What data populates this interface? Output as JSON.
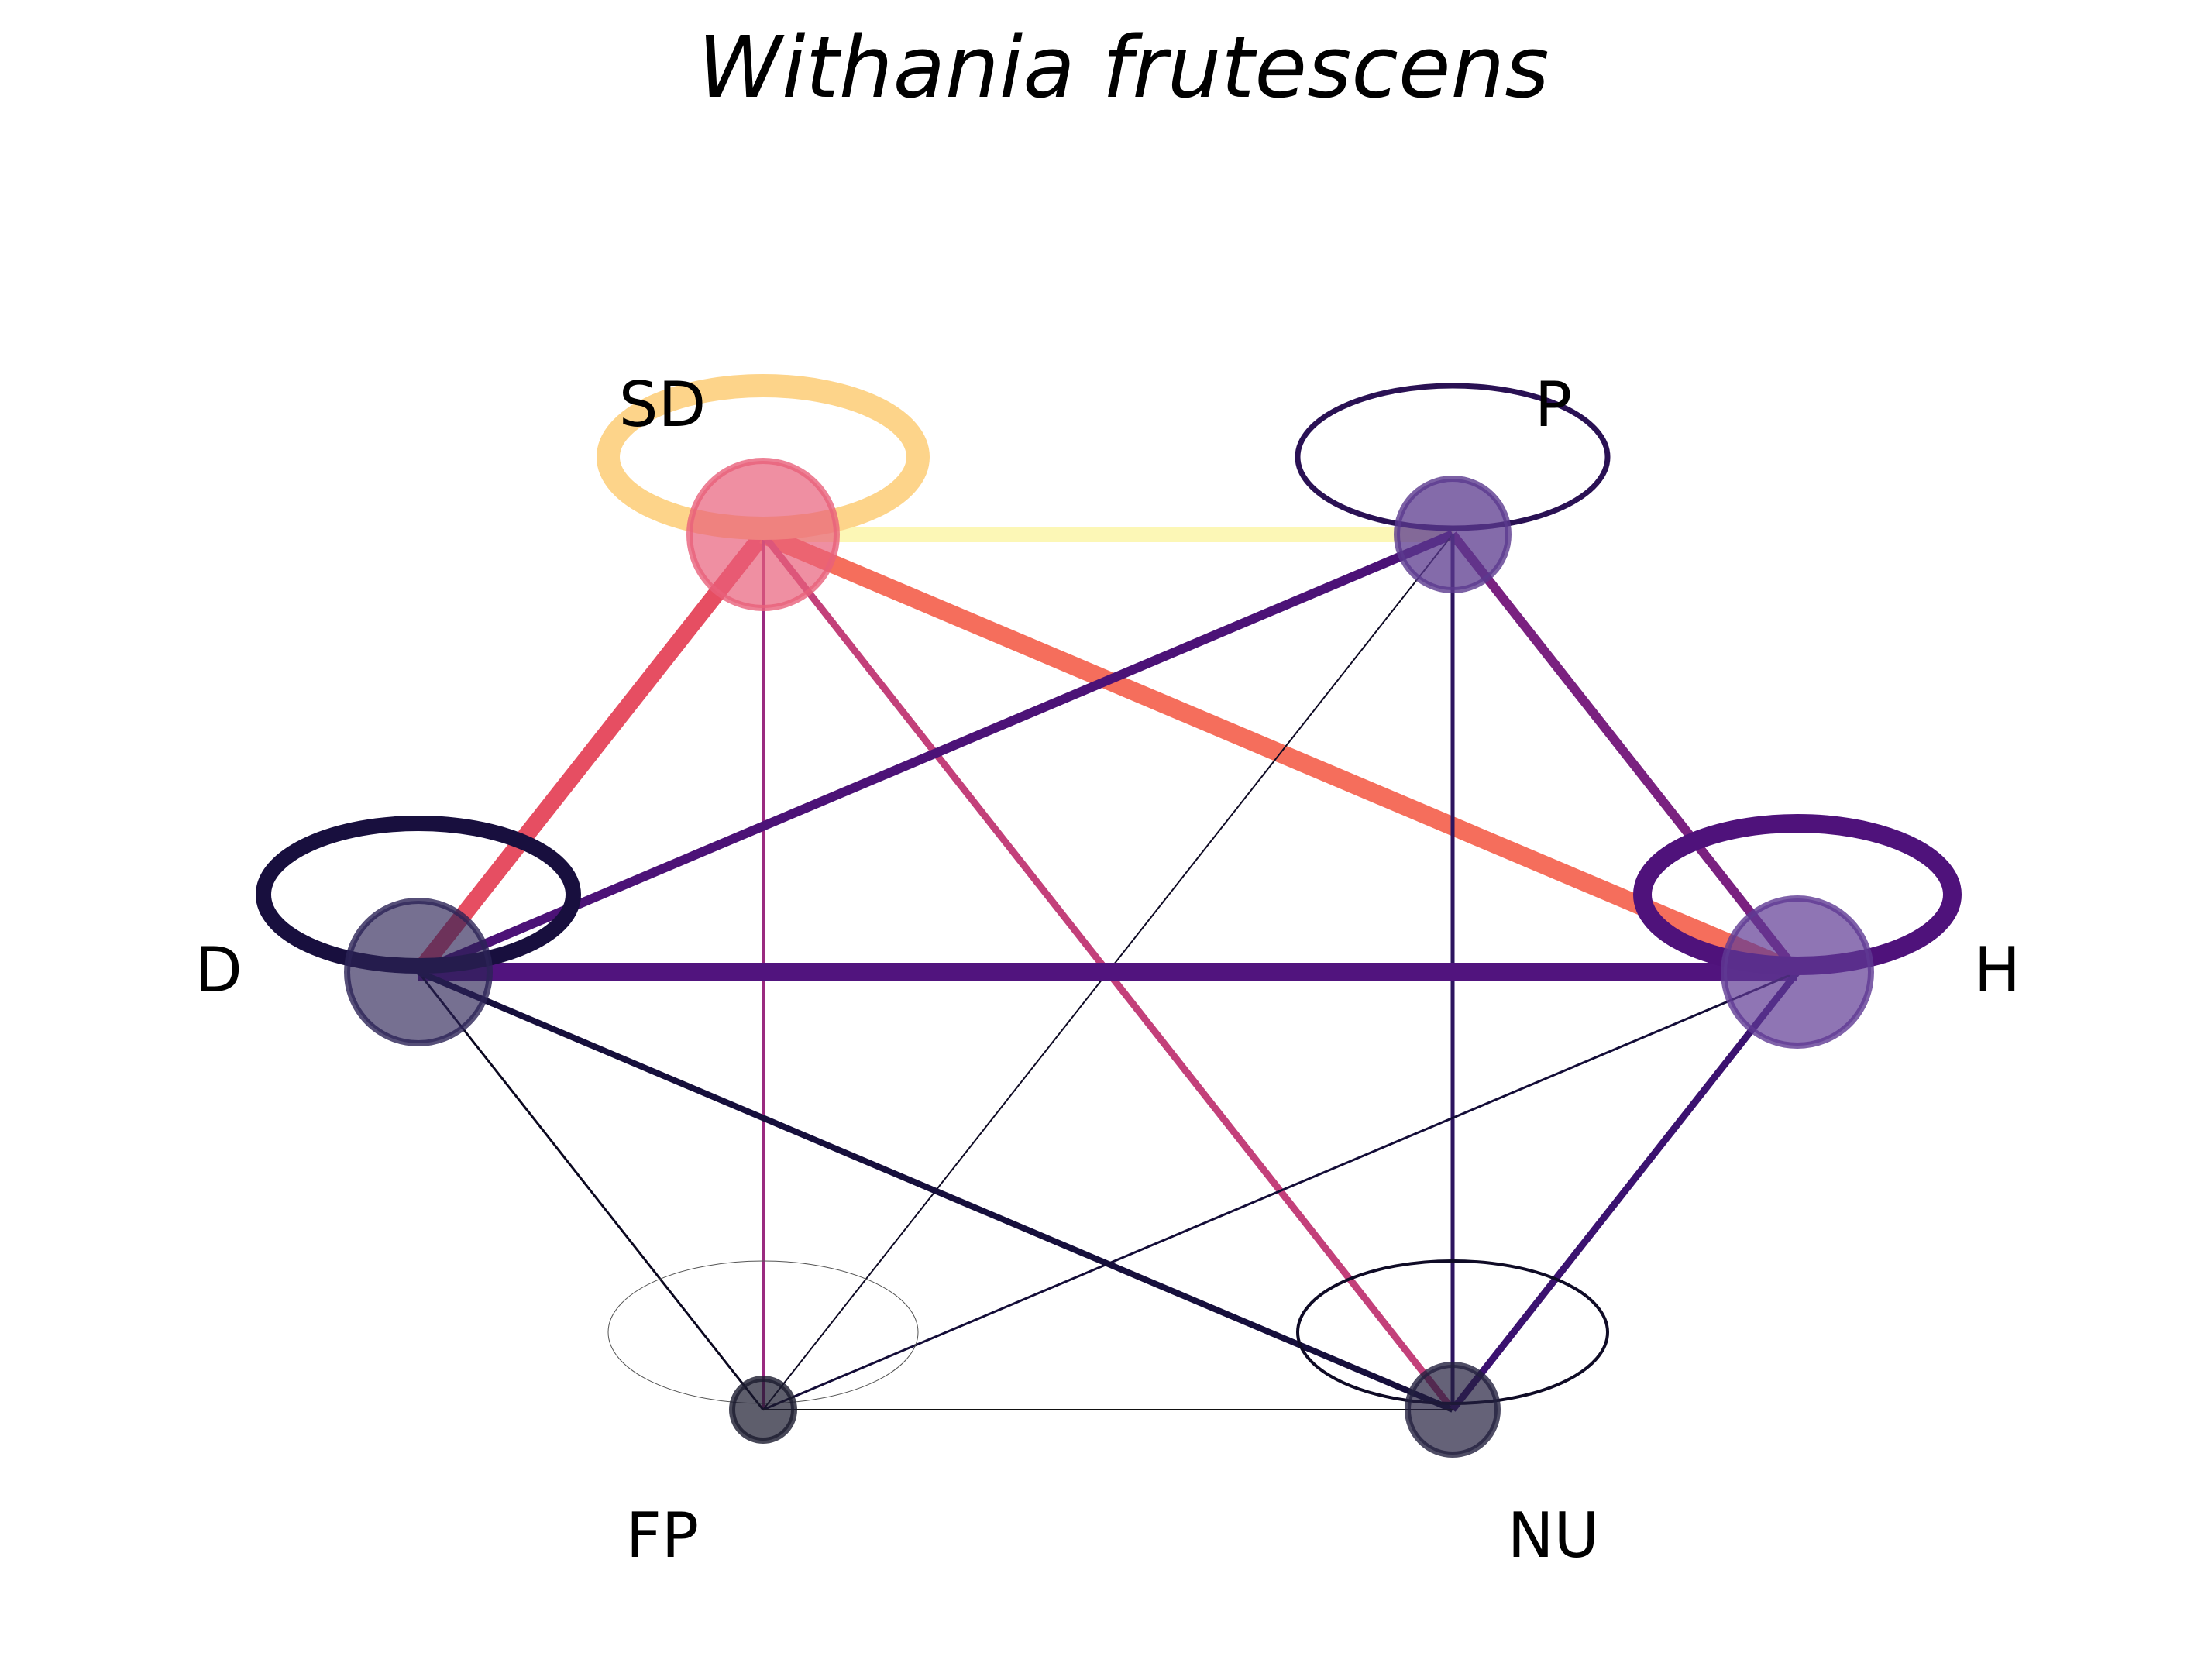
{
  "title": "Withania frutescens",
  "nodes": [
    {
      "id": "SD",
      "label": "SD",
      "color": "#e8607a",
      "loop_color": "#fdd48a"
    },
    {
      "id": "P",
      "label": "P",
      "color": "#5b3a8e",
      "loop_color": "#2a1154"
    },
    {
      "id": "D",
      "label": "D",
      "color": "#2c2356",
      "loop_color": "#180f3e"
    },
    {
      "id": "H",
      "label": "H",
      "color": "#5f3a94",
      "loop_color": "#4f127b"
    },
    {
      "id": "FP",
      "label": "FP",
      "color": "#1a1a2e",
      "loop_color": "#555555"
    },
    {
      "id": "NU",
      "label": "NU",
      "color": "#23203f",
      "loop_color": "#0f0b26"
    }
  ],
  "edges": [
    {
      "from": "SD",
      "to": "P",
      "color": "#fcf7b6"
    },
    {
      "from": "SD",
      "to": "D",
      "color": "#e64e62"
    },
    {
      "from": "SD",
      "to": "H",
      "color": "#f56e5c"
    },
    {
      "from": "SD",
      "to": "FP",
      "color": "#9a2a80"
    },
    {
      "from": "SD",
      "to": "NU",
      "color": "#c3407a"
    },
    {
      "from": "P",
      "to": "D",
      "color": "#4c1277"
    },
    {
      "from": "P",
      "to": "H",
      "color": "#7a2180"
    },
    {
      "from": "P",
      "to": "FP",
      "color": "#0e0a24"
    },
    {
      "from": "P",
      "to": "NU",
      "color": "#2d1560"
    },
    {
      "from": "D",
      "to": "H",
      "color": "#51147e"
    },
    {
      "from": "D",
      "to": "FP",
      "color": "#0b0820"
    },
    {
      "from": "D",
      "to": "NU",
      "color": "#160f3c"
    },
    {
      "from": "H",
      "to": "FP",
      "color": "#140d38"
    },
    {
      "from": "H",
      "to": "NU",
      "color": "#3b1270"
    },
    {
      "from": "FP",
      "to": "NU",
      "color": "#111111"
    }
  ]
}
